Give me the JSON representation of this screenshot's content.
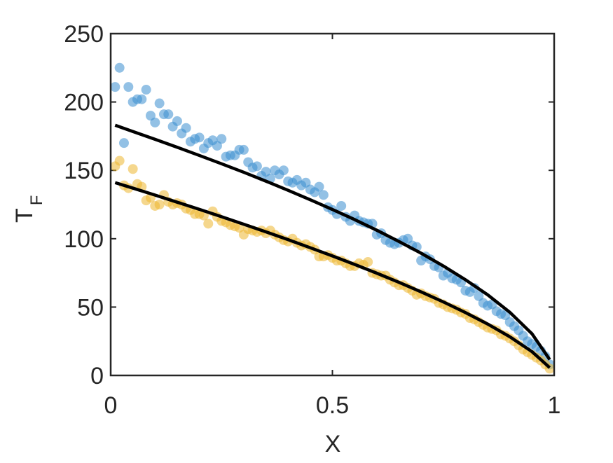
{
  "chart_data": {
    "type": "scatter",
    "xlabel": "X",
    "ylabel": "T",
    "ylabel_subscript": "F",
    "xlim": [
      0,
      1
    ],
    "ylim": [
      0,
      250
    ],
    "xticks": [
      0,
      0.5,
      1
    ],
    "yticks": [
      0,
      50,
      100,
      150,
      200,
      250
    ],
    "grid": false,
    "box": true,
    "alpha": 0.55,
    "x": [
      0.01,
      0.02,
      0.03,
      0.04,
      0.05,
      0.06,
      0.07,
      0.08,
      0.09,
      0.1,
      0.11,
      0.12,
      0.13,
      0.14,
      0.15,
      0.16,
      0.17,
      0.18,
      0.19,
      0.2,
      0.21,
      0.22,
      0.23,
      0.24,
      0.25,
      0.26,
      0.27,
      0.28,
      0.29,
      0.3,
      0.31,
      0.32,
      0.33,
      0.34,
      0.35,
      0.36,
      0.37,
      0.38,
      0.39,
      0.4,
      0.41,
      0.42,
      0.43,
      0.44,
      0.45,
      0.46,
      0.47,
      0.48,
      0.49,
      0.5,
      0.51,
      0.52,
      0.53,
      0.54,
      0.55,
      0.56,
      0.57,
      0.58,
      0.59,
      0.6,
      0.61,
      0.62,
      0.63,
      0.64,
      0.65,
      0.66,
      0.67,
      0.68,
      0.69,
      0.7,
      0.71,
      0.72,
      0.73,
      0.74,
      0.75,
      0.76,
      0.77,
      0.78,
      0.79,
      0.8,
      0.81,
      0.82,
      0.83,
      0.84,
      0.85,
      0.86,
      0.87,
      0.88,
      0.89,
      0.9,
      0.91,
      0.92,
      0.93,
      0.94,
      0.95,
      0.96,
      0.97,
      0.98,
      0.99
    ],
    "series": [
      {
        "color": "#3a8ed0",
        "values": [
          211,
          225,
          170,
          211,
          200,
          202,
          202,
          209,
          190,
          185,
          199,
          191,
          191,
          182,
          186,
          177,
          181,
          171,
          173,
          174,
          166,
          170,
          172,
          168,
          173,
          160,
          161,
          161,
          165,
          165,
          156,
          152,
          153,
          146,
          149,
          144,
          150,
          147,
          150,
          142,
          141,
          143,
          139,
          141,
          136,
          134,
          138,
          132,
          123,
          121,
          118,
          124,
          116,
          113,
          117,
          113,
          112,
          111,
          111,
          103,
          104,
          99,
          97,
          96,
          97,
          99,
          100,
          95,
          94,
          84,
          87,
          85,
          80,
          79,
          73,
          75,
          71,
          70,
          68,
          62,
          61,
          64,
          58,
          53,
          51,
          52,
          47,
          45,
          44,
          39,
          36,
          33,
          29,
          25,
          23,
          21,
          18,
          14,
          8
        ]
      },
      {
        "color": "#edb62f",
        "values": [
          153,
          157,
          139,
          137,
          151,
          140,
          138,
          128,
          130,
          124,
          125,
          132,
          127,
          125,
          126,
          125,
          122,
          121,
          118,
          118,
          117,
          111,
          120,
          116,
          113,
          112,
          110,
          109,
          108,
          103,
          107,
          106,
          105,
          106,
          104,
          106,
          103,
          101,
          99,
          98,
          100,
          97,
          95,
          96,
          94,
          92,
          87,
          87,
          88,
          86,
          84,
          84,
          82,
          80,
          80,
          82,
          81,
          83,
          75,
          74,
          73,
          73,
          70,
          68,
          66,
          66,
          64,
          62,
          59,
          60,
          58,
          57,
          56,
          53,
          52,
          50,
          49,
          48,
          46,
          45,
          42,
          41,
          39,
          37,
          35,
          34,
          33,
          30,
          29,
          27,
          25,
          22,
          19,
          17,
          15,
          13,
          11,
          8,
          5
        ]
      }
    ],
    "fits": [
      {
        "type": "line",
        "color": "#000000",
        "x": [
          0.01,
          0.05,
          0.1,
          0.15,
          0.2,
          0.25,
          0.3,
          0.35,
          0.4,
          0.45,
          0.5,
          0.55,
          0.6,
          0.65,
          0.7,
          0.75,
          0.8,
          0.85,
          0.9,
          0.95,
          0.99
        ],
        "values": [
          183,
          178.4,
          172.7,
          166.9,
          160.9,
          154.8,
          148.6,
          142.1,
          135.4,
          128.5,
          121.4,
          114.0,
          106.2,
          98.0,
          89.4,
          80.1,
          70.0,
          59.0,
          46.2,
          30.5,
          11.6
        ]
      },
      {
        "type": "line",
        "color": "#000000",
        "x": [
          0.01,
          0.05,
          0.1,
          0.15,
          0.2,
          0.25,
          0.3,
          0.35,
          0.4,
          0.45,
          0.5,
          0.55,
          0.6,
          0.65,
          0.7,
          0.75,
          0.8,
          0.85,
          0.9,
          0.95,
          0.99
        ],
        "values": [
          141,
          137,
          131.9,
          126.7,
          121.5,
          116.1,
          110.6,
          105.0,
          99.3,
          93.4,
          87.4,
          81.2,
          74.8,
          68.1,
          61.1,
          53.8,
          46.0,
          37.6,
          28.3,
          17.4,
          5.7
        ]
      }
    ]
  }
}
